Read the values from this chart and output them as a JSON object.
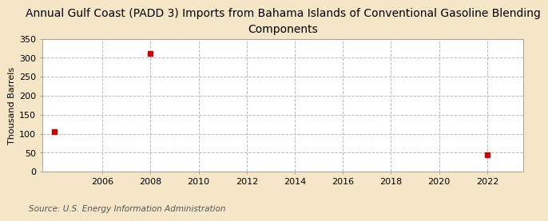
{
  "title": "Annual Gulf Coast (PADD 3) Imports from Bahama Islands of Conventional Gasoline Blending\nComponents",
  "ylabel": "Thousand Barrels",
  "source": "Source: U.S. Energy Information Administration",
  "data_x": [
    2004,
    2008,
    2022
  ],
  "data_y": [
    105,
    311,
    45
  ],
  "marker_color": "#cc0000",
  "marker_size": 4,
  "xlim": [
    2003.5,
    2023.5
  ],
  "ylim": [
    0,
    350
  ],
  "xticks": [
    2006,
    2008,
    2010,
    2012,
    2014,
    2016,
    2018,
    2020,
    2022
  ],
  "yticks": [
    0,
    50,
    100,
    150,
    200,
    250,
    300,
    350
  ],
  "figure_bg_color": "#f5e6c8",
  "plot_bg_color": "#ffffff",
  "grid_color": "#bbbbbb",
  "title_fontsize": 10,
  "label_fontsize": 8,
  "tick_fontsize": 8,
  "source_fontsize": 7.5
}
